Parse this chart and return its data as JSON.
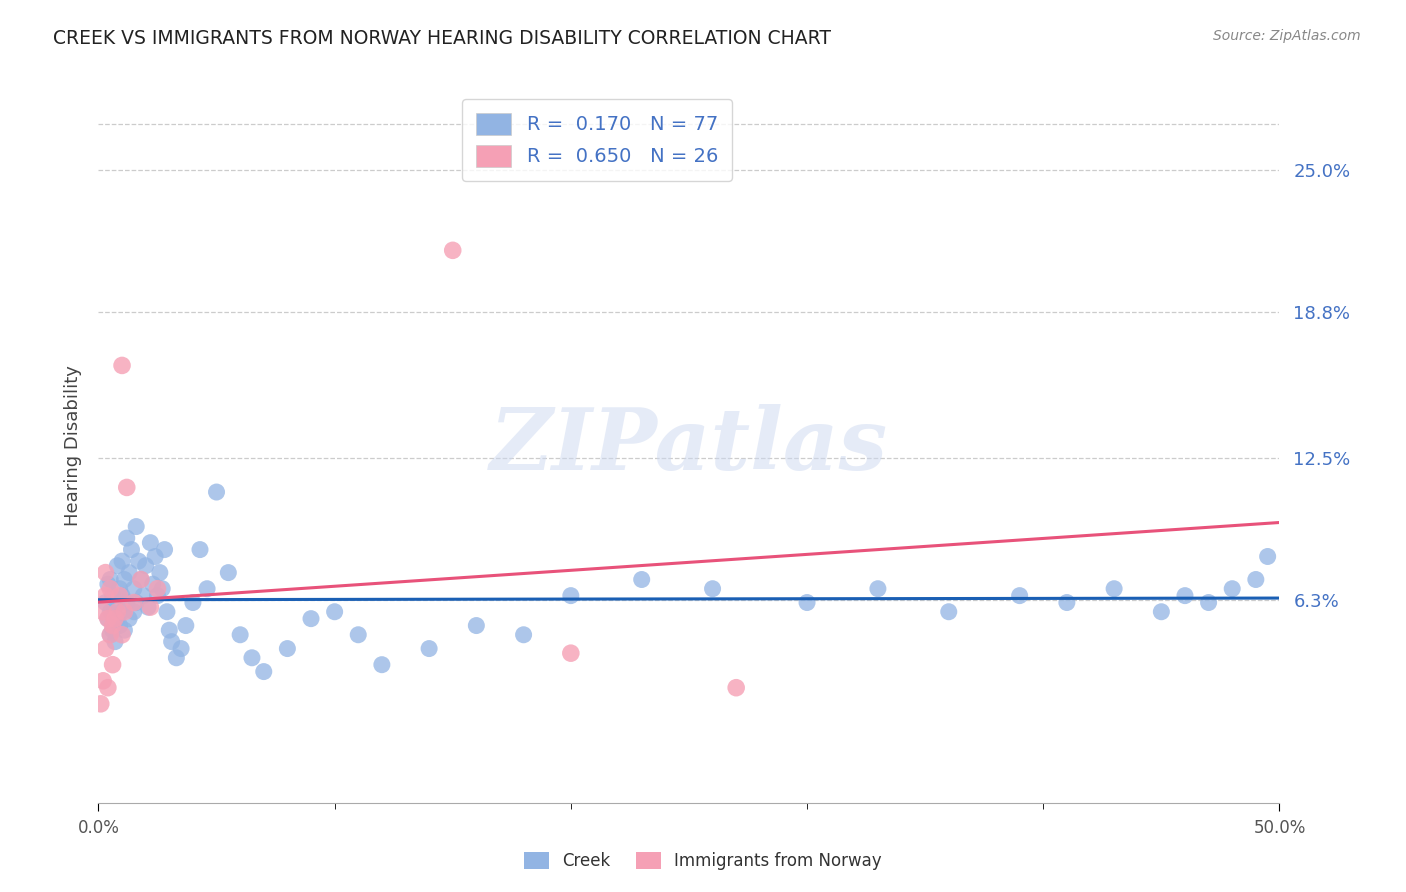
{
  "title": "CREEK VS IMMIGRANTS FROM NORWAY HEARING DISABILITY CORRELATION CHART",
  "source": "Source: ZipAtlas.com",
  "xlabel_creek": "Creek",
  "xlabel_norway": "Immigrants from Norway",
  "ylabel": "Hearing Disability",
  "xmin": 0.0,
  "xmax": 0.5,
  "ymin": -0.025,
  "ymax": 0.285,
  "yticks": [
    0.063,
    0.125,
    0.188,
    0.25
  ],
  "ytick_labels": [
    "6.3%",
    "12.5%",
    "18.8%",
    "25.0%"
  ],
  "xtick_positions": [
    0.0,
    0.5
  ],
  "xtick_labels": [
    "0.0%",
    "50.0%"
  ],
  "creek_color": "#92b4e3",
  "norway_color": "#f5a0b5",
  "creek_line_color": "#1a5fb4",
  "norway_line_color": "#e8527a",
  "legend_text_color": "#4472c4",
  "right_tick_color": "#4472c4",
  "grid_color": "#cccccc",
  "creek_R": 0.17,
  "creek_N": 77,
  "norway_R": 0.65,
  "norway_N": 26,
  "watermark": "ZIPatlas",
  "creek_x": [
    0.003,
    0.004,
    0.004,
    0.005,
    0.005,
    0.005,
    0.006,
    0.006,
    0.007,
    0.007,
    0.008,
    0.008,
    0.009,
    0.009,
    0.01,
    0.01,
    0.01,
    0.011,
    0.011,
    0.012,
    0.012,
    0.013,
    0.013,
    0.014,
    0.015,
    0.015,
    0.016,
    0.016,
    0.017,
    0.018,
    0.019,
    0.02,
    0.021,
    0.022,
    0.023,
    0.024,
    0.025,
    0.026,
    0.027,
    0.028,
    0.029,
    0.03,
    0.031,
    0.033,
    0.035,
    0.037,
    0.04,
    0.043,
    0.046,
    0.05,
    0.055,
    0.06,
    0.065,
    0.07,
    0.08,
    0.09,
    0.1,
    0.11,
    0.12,
    0.14,
    0.16,
    0.18,
    0.2,
    0.23,
    0.26,
    0.3,
    0.33,
    0.36,
    0.39,
    0.41,
    0.43,
    0.45,
    0.46,
    0.47,
    0.48,
    0.49,
    0.495
  ],
  "creek_y": [
    0.062,
    0.055,
    0.07,
    0.048,
    0.058,
    0.072,
    0.05,
    0.065,
    0.045,
    0.06,
    0.055,
    0.078,
    0.052,
    0.068,
    0.058,
    0.065,
    0.08,
    0.05,
    0.072,
    0.062,
    0.09,
    0.055,
    0.075,
    0.085,
    0.068,
    0.058,
    0.095,
    0.062,
    0.08,
    0.072,
    0.065,
    0.078,
    0.06,
    0.088,
    0.07,
    0.082,
    0.065,
    0.075,
    0.068,
    0.085,
    0.058,
    0.05,
    0.045,
    0.038,
    0.042,
    0.052,
    0.062,
    0.085,
    0.068,
    0.11,
    0.075,
    0.048,
    0.038,
    0.032,
    0.042,
    0.055,
    0.058,
    0.048,
    0.035,
    0.042,
    0.052,
    0.048,
    0.065,
    0.072,
    0.068,
    0.062,
    0.068,
    0.058,
    0.065,
    0.062,
    0.068,
    0.058,
    0.065,
    0.062,
    0.068,
    0.072,
    0.082
  ],
  "norway_x": [
    0.001,
    0.002,
    0.002,
    0.003,
    0.003,
    0.003,
    0.004,
    0.004,
    0.005,
    0.005,
    0.006,
    0.006,
    0.007,
    0.008,
    0.009,
    0.01,
    0.01,
    0.011,
    0.012,
    0.015,
    0.018,
    0.022,
    0.025,
    0.15,
    0.2,
    0.27
  ],
  "norway_y": [
    0.018,
    0.028,
    0.058,
    0.042,
    0.065,
    0.075,
    0.025,
    0.055,
    0.048,
    0.068,
    0.035,
    0.052,
    0.055,
    0.058,
    0.065,
    0.048,
    0.165,
    0.058,
    0.112,
    0.062,
    0.072,
    0.06,
    0.068,
    0.215,
    0.04,
    0.025
  ]
}
